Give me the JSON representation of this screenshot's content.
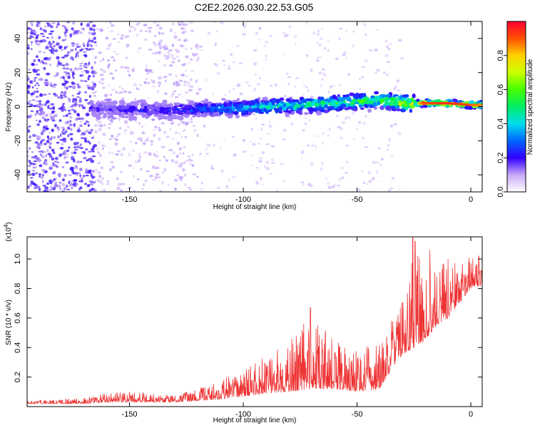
{
  "chart_data": [
    {
      "type": "heatmap",
      "title": "C2E2.2026.030.22.53.G05",
      "xlabel": "Height of straight line (km)",
      "ylabel": "Frequency (Hz)",
      "xlim": [
        -195,
        5
      ],
      "ylim": [
        -50,
        50
      ],
      "x_ticks": [
        -150,
        -100,
        -50,
        0
      ],
      "y_ticks": [
        -40,
        -20,
        0,
        20,
        40
      ],
      "grid": false,
      "colorbar": {
        "label": "Normalized spectral amplitude",
        "range": [
          0,
          1
        ],
        "ticks": [
          0.0,
          0.2,
          0.4,
          0.6,
          0.8
        ]
      },
      "ridge": {
        "x": [
          -165,
          -150,
          -130,
          -110,
          -90,
          -70,
          -50,
          -40,
          -30,
          -20,
          -10,
          0,
          5
        ],
        "frequency": [
          -1,
          -2,
          -2,
          -1,
          0,
          1,
          3,
          4,
          2,
          2,
          2,
          1,
          1
        ],
        "amplitude": [
          0.18,
          0.22,
          0.25,
          0.35,
          0.45,
          0.5,
          0.55,
          0.6,
          0.7,
          0.9,
          0.95,
          0.9,
          0.85
        ]
      }
    },
    {
      "type": "line",
      "title": "",
      "xlabel": "Height of straight line (km)",
      "ylabel": "SNR (10 * v/v)",
      "y_multiplier": "(x10",
      "y_multiplier_exp": "4",
      "y_multiplier_close": ")",
      "xlim": [
        -195,
        5
      ],
      "ylim": [
        0,
        1.15
      ],
      "x_ticks": [
        -150,
        -100,
        -50,
        0
      ],
      "y_ticks": [
        0.2,
        0.4,
        0.6,
        0.8,
        1.0
      ],
      "grid": false,
      "series": [
        {
          "color": "#ee3333",
          "x": [
            -195,
            -180,
            -170,
            -160,
            -150,
            -140,
            -130,
            -120,
            -110,
            -100,
            -90,
            -80,
            -70,
            -60,
            -50,
            -40,
            -35,
            -30,
            -25,
            -20,
            -15,
            -10,
            -5,
            0,
            5
          ],
          "baseline": [
            0.02,
            0.02,
            0.02,
            0.03,
            0.03,
            0.03,
            0.03,
            0.04,
            0.05,
            0.07,
            0.09,
            0.1,
            0.12,
            0.12,
            0.1,
            0.12,
            0.25,
            0.35,
            0.4,
            0.45,
            0.55,
            0.6,
            0.7,
            0.8,
            0.82
          ],
          "envelope": [
            0.04,
            0.05,
            0.06,
            0.09,
            0.1,
            0.09,
            0.08,
            0.12,
            0.18,
            0.25,
            0.35,
            0.45,
            0.62,
            0.45,
            0.4,
            0.42,
            0.6,
            0.75,
            1.15,
            0.85,
            0.95,
            1.0,
            0.95,
            1.02,
            0.95
          ],
          "peaks": [
            {
              "x": -70.5,
              "y": 0.67
            },
            {
              "x": -25.5,
              "y": 1.15
            },
            {
              "x": -24.5,
              "y": 1.12
            },
            {
              "x": -18.0,
              "y": 1.06
            },
            {
              "x": -7.0,
              "y": 0.97
            },
            {
              "x": 3.5,
              "y": 1.02
            }
          ]
        }
      ]
    }
  ]
}
